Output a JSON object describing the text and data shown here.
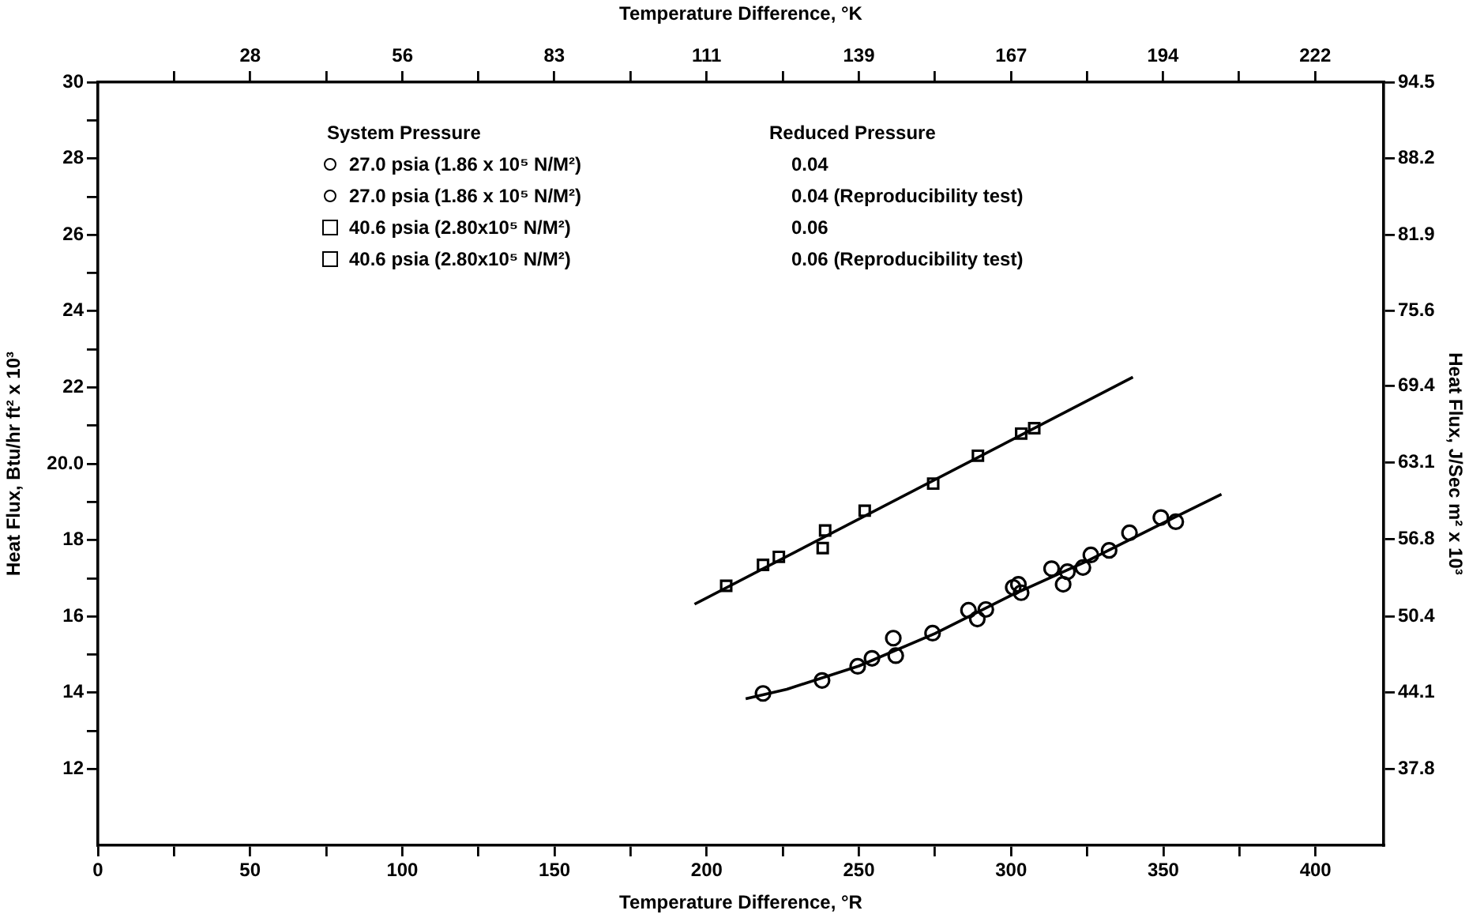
{
  "chart_data": {
    "type": "scatter",
    "xlabel": "Temperature Difference, °R",
    "x2label": "Temperature Difference, °K",
    "ylabel": "Heat Flux, Btu/hr ft² x 10³",
    "y2label": "Heat Flux, J/Sec m² x 10³",
    "legend_title": "System Pressure\tReduced Pressure",
    "legend": "top left",
    "grid": false,
    "xlim": [
      0,
      422.4
    ],
    "xticks": [
      0,
      {
        "value": 25,
        "label": null
      },
      50,
      {
        "value": 75,
        "label": null
      },
      100,
      {
        "value": 125,
        "label": null
      },
      150,
      {
        "value": 175,
        "label": null
      },
      200,
      {
        "value": 225,
        "label": null
      },
      250,
      {
        "value": 275,
        "label": null
      },
      300,
      {
        "value": 325,
        "label": null
      },
      350,
      {
        "value": 375,
        "label": null
      },
      400
    ],
    "x2lim": [
      0,
      234.7
    ],
    "x2ticks": [
      {
        "value": 13.9,
        "label": null
      },
      {
        "value": 27.8,
        "label": "28"
      },
      {
        "value": 41.7,
        "label": null
      },
      {
        "value": 55.6,
        "label": "56"
      },
      {
        "value": 69.4,
        "label": null
      },
      {
        "value": 83.3,
        "label": "83"
      },
      {
        "value": 97.2,
        "label": null
      },
      {
        "value": 111.1,
        "label": "111"
      },
      {
        "value": 125,
        "label": null
      },
      {
        "value": 138.9,
        "label": "139"
      },
      {
        "value": 152.8,
        "label": null
      },
      {
        "value": 166.7,
        "label": "167"
      },
      {
        "value": 180.6,
        "label": null
      },
      {
        "value": 194.4,
        "label": "194"
      },
      {
        "value": 208.3,
        "label": null
      },
      {
        "value": 222.2,
        "label": "222"
      }
    ],
    "ylim": [
      10,
      30
    ],
    "yticks": [
      12,
      {
        "value": 13,
        "label": null
      },
      14,
      {
        "value": 15,
        "label": null
      },
      16,
      {
        "value": 17,
        "label": null
      },
      18,
      {
        "value": 19,
        "label": null
      },
      {
        "value": 20,
        "label": "20.0"
      },
      {
        "value": 21,
        "label": null
      },
      22,
      {
        "value": 23,
        "label": null
      },
      24,
      {
        "value": 25,
        "label": null
      },
      26,
      {
        "value": 27,
        "label": null
      },
      28,
      {
        "value": 29,
        "label": null
      },
      30
    ],
    "y2lim": [
      31.5,
      94.5
    ],
    "y2ticks": [
      37.8,
      44.1,
      50.4,
      56.8,
      63.1,
      69.4,
      75.6,
      81.9,
      88.2,
      94.5
    ],
    "series": [
      {
        "name": "27.0 psia (1.86 x 10⁵ N/M²)\t0.04",
        "color": "#000000",
        "marker": "circle",
        "x": [
          254.3,
          261.3,
          286.0,
          288.9,
          303.3,
          302.4,
          313.3,
          318.5,
          326.2,
          338.9,
          349.2
        ],
        "values": [
          14.9,
          15.43,
          16.16,
          15.93,
          16.62,
          16.84,
          17.25,
          17.17,
          17.61,
          18.19,
          18.59
        ]
      },
      {
        "name": "27.0 psia (1.86 x 10⁵ N/M²)\t0.04 (Reproducibility test)",
        "color": "#000000",
        "marker": "circle",
        "x": [
          218.5,
          237.9,
          249.6,
          262.1,
          274.2,
          291.7,
          300.7,
          317.1,
          323.6,
          332.2,
          354.1
        ],
        "values": [
          13.98,
          14.32,
          14.69,
          14.97,
          15.56,
          16.18,
          16.76,
          16.84,
          17.28,
          17.73,
          18.48
        ]
      },
      {
        "name": "40.6 psia (2.80x10⁵ N/M²)\t0.06",
        "color": "#000000",
        "marker": "square",
        "x": [
          206.4,
          218.5,
          223.7,
          238.9,
          238.1,
          251.9,
          274.4,
          289.1,
          307.6
        ],
        "values": [
          16.8,
          17.35,
          17.56,
          18.25,
          17.79,
          18.77,
          19.48,
          20.21,
          20.93
        ]
      },
      {
        "name": "40.6 psia (2.80x10⁵ N/M²)\t0.06 (Reproducibility test)",
        "color": "#000000",
        "marker": "square",
        "x": [
          303.3
        ],
        "values": [
          20.79
        ]
      },
      {
        "type": "line",
        "color": "#000000",
        "x": [
          196,
          340
        ],
        "values": [
          16.32,
          22.27
        ]
      },
      {
        "type": "line",
        "color": "#000000",
        "x": [
          212.8,
          226.3,
          250,
          275,
          300,
          325,
          350,
          369.1
        ],
        "values": [
          13.84,
          14.09,
          14.7,
          15.55,
          16.55,
          17.45,
          18.45,
          19.2
        ]
      }
    ]
  }
}
